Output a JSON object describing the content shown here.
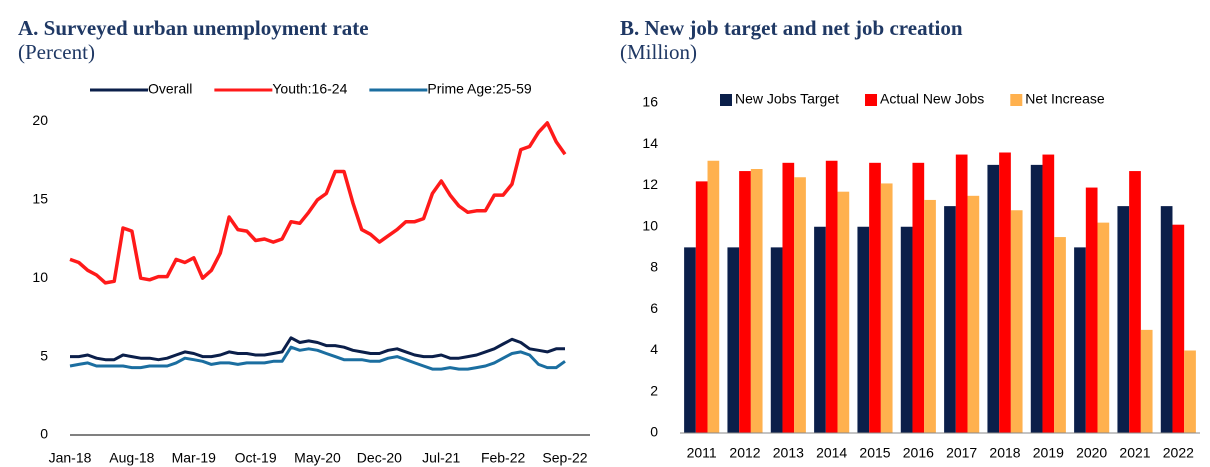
{
  "chart_data": [
    {
      "type": "line",
      "title": "A. Surveyed urban unemployment rate",
      "subtitle": "(Percent)",
      "categories": [
        "Jan-18",
        null,
        null,
        null,
        null,
        null,
        null,
        "Aug-18",
        null,
        null,
        null,
        null,
        null,
        null,
        "Mar-19",
        null,
        null,
        null,
        null,
        null,
        null,
        "Oct-19",
        null,
        null,
        null,
        null,
        null,
        null,
        "May-20",
        null,
        null,
        null,
        null,
        null,
        null,
        "Dec-20",
        null,
        null,
        null,
        null,
        null,
        null,
        "Jul-21",
        null,
        null,
        null,
        null,
        null,
        null,
        "Feb-22",
        null,
        null,
        null,
        null,
        null,
        null,
        "Sep-22"
      ],
      "series": [
        {
          "name": "Overall",
          "color": "#0b1f4a",
          "values": [
            5.0,
            5.0,
            5.1,
            4.9,
            4.8,
            4.8,
            5.1,
            5.0,
            4.9,
            4.9,
            4.8,
            4.9,
            5.1,
            5.3,
            5.2,
            5.0,
            5.0,
            5.1,
            5.3,
            5.2,
            5.2,
            5.1,
            5.1,
            5.2,
            5.3,
            6.2,
            5.9,
            6.0,
            5.9,
            5.7,
            5.7,
            5.6,
            5.4,
            5.3,
            5.2,
            5.2,
            5.4,
            5.5,
            5.3,
            5.1,
            5.0,
            5.0,
            5.1,
            4.9,
            4.9,
            5.0,
            5.1,
            5.3,
            5.5,
            5.8,
            6.1,
            5.9,
            5.5,
            5.4,
            5.3,
            5.5,
            5.5
          ]
        },
        {
          "name": "Youth:16-24",
          "color": "#ff1a1a",
          "values": [
            11.2,
            11.0,
            10.5,
            10.2,
            9.7,
            9.8,
            13.2,
            13.0,
            10.0,
            9.9,
            10.1,
            10.1,
            11.2,
            11.0,
            11.3,
            10.0,
            10.5,
            11.6,
            13.9,
            13.1,
            13.0,
            12.4,
            12.5,
            12.3,
            12.5,
            13.6,
            13.5,
            14.2,
            15.0,
            15.4,
            16.8,
            16.8,
            14.8,
            13.1,
            12.8,
            12.3,
            12.7,
            13.1,
            13.6,
            13.6,
            13.8,
            15.4,
            16.2,
            15.3,
            14.6,
            14.2,
            14.3,
            14.3,
            15.3,
            15.3,
            16.0,
            18.2,
            18.4,
            19.3,
            19.9,
            18.7,
            17.9
          ]
        },
        {
          "name": "Prime Age:25-59",
          "color": "#1b6ea0",
          "values": [
            4.4,
            4.5,
            4.6,
            4.4,
            4.4,
            4.4,
            4.4,
            4.3,
            4.3,
            4.4,
            4.4,
            4.4,
            4.6,
            4.9,
            4.8,
            4.7,
            4.5,
            4.6,
            4.6,
            4.5,
            4.6,
            4.6,
            4.6,
            4.7,
            4.7,
            5.6,
            5.4,
            5.5,
            5.4,
            5.2,
            5.0,
            4.8,
            4.8,
            4.8,
            4.7,
            4.7,
            4.9,
            5.0,
            4.8,
            4.6,
            4.4,
            4.2,
            4.2,
            4.3,
            4.2,
            4.2,
            4.3,
            4.4,
            4.6,
            4.9,
            5.2,
            5.3,
            5.1,
            4.5,
            4.3,
            4.3,
            4.7
          ]
        }
      ],
      "ylim": [
        0,
        22
      ],
      "yticks": [
        0,
        5,
        10,
        15,
        20
      ],
      "grid": false
    },
    {
      "type": "bar",
      "title": "B. New job target and net job creation",
      "subtitle": "(Million)",
      "categories": [
        "2011",
        "2012",
        "2013",
        "2014",
        "2015",
        "2016",
        "2017",
        "2018",
        "2019",
        "2020",
        "2021",
        "2022"
      ],
      "series": [
        {
          "name": "New Jobs Target",
          "color": "#0b1f4a",
          "values": [
            9,
            9,
            9,
            10,
            10,
            10,
            11,
            13,
            13,
            9,
            11,
            11
          ]
        },
        {
          "name": "Actual New Jobs",
          "color": "#ff0000",
          "values": [
            12.2,
            12.7,
            13.1,
            13.2,
            13.1,
            13.1,
            13.5,
            13.6,
            13.5,
            11.9,
            12.7,
            10.1
          ]
        },
        {
          "name": "Net Increase",
          "color": "#ffb14e",
          "values": [
            13.2,
            12.8,
            12.4,
            11.7,
            12.1,
            11.3,
            11.5,
            10.8,
            9.5,
            10.2,
            5.0,
            4.0
          ]
        }
      ],
      "ylim": [
        0,
        16
      ],
      "yticks": [
        0,
        2,
        4,
        6,
        8,
        10,
        12,
        14,
        16
      ],
      "grid": false
    }
  ]
}
